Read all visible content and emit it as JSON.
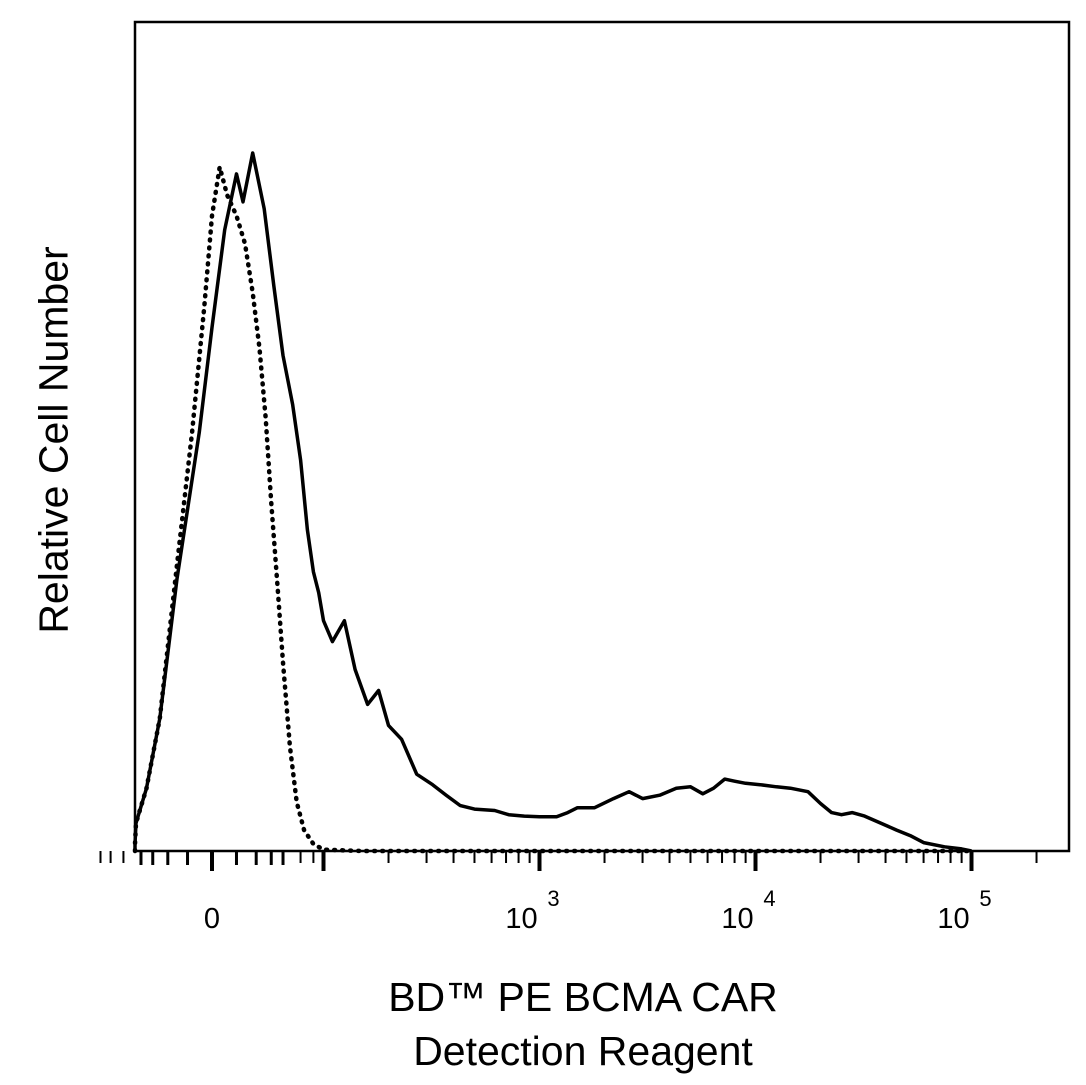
{
  "chart_data": {
    "type": "line",
    "ylabel": "Relative Cell Number",
    "xlabel_lines": [
      "BD™ PE BCMA CAR",
      "Detection Reagent"
    ],
    "x_scale": "biexponential (logicle)",
    "x_ticks": [
      {
        "value": 0,
        "base": "0",
        "exp": ""
      },
      {
        "value": 1000,
        "base": "10",
        "exp": "3"
      },
      {
        "value": 10000,
        "base": "10",
        "exp": "4"
      },
      {
        "value": 100000,
        "base": "10",
        "exp": "5"
      }
    ],
    "y_ticks": "none",
    "grid": false,
    "series": [
      {
        "style": "solid",
        "points": [
          [
            -80,
            0.0
          ],
          [
            -60,
            0.01
          ],
          [
            -45,
            0.04
          ],
          [
            -35,
            0.09
          ],
          [
            -25,
            0.19
          ],
          [
            -15,
            0.39
          ],
          [
            -5,
            0.6
          ],
          [
            0,
            0.75
          ],
          [
            5,
            0.89
          ],
          [
            10,
            0.97
          ],
          [
            13,
            0.93
          ],
          [
            18,
            1.0
          ],
          [
            25,
            0.92
          ],
          [
            32,
            0.81
          ],
          [
            40,
            0.71
          ],
          [
            50,
            0.64
          ],
          [
            60,
            0.56
          ],
          [
            70,
            0.46
          ],
          [
            80,
            0.4
          ],
          [
            90,
            0.37
          ],
          [
            100,
            0.33
          ],
          [
            110,
            0.3
          ],
          [
            125,
            0.33
          ],
          [
            140,
            0.26
          ],
          [
            160,
            0.21
          ],
          [
            180,
            0.23
          ],
          [
            200,
            0.18
          ],
          [
            230,
            0.16
          ],
          [
            270,
            0.11
          ],
          [
            320,
            0.095
          ],
          [
            370,
            0.08
          ],
          [
            430,
            0.065
          ],
          [
            500,
            0.06
          ],
          [
            620,
            0.058
          ],
          [
            720,
            0.052
          ],
          [
            850,
            0.05
          ],
          [
            1000,
            0.049
          ],
          [
            1200,
            0.049
          ],
          [
            1350,
            0.055
          ],
          [
            1500,
            0.062
          ],
          [
            1800,
            0.062
          ],
          [
            2200,
            0.075
          ],
          [
            2600,
            0.085
          ],
          [
            3000,
            0.075
          ],
          [
            3600,
            0.08
          ],
          [
            4300,
            0.09
          ],
          [
            5000,
            0.092
          ],
          [
            5700,
            0.082
          ],
          [
            6400,
            0.09
          ],
          [
            7200,
            0.103
          ],
          [
            8000,
            0.1
          ],
          [
            9000,
            0.097
          ],
          [
            10500,
            0.095
          ],
          [
            12500,
            0.092
          ],
          [
            14500,
            0.09
          ],
          [
            17500,
            0.085
          ],
          [
            20000,
            0.068
          ],
          [
            22500,
            0.055
          ],
          [
            25000,
            0.052
          ],
          [
            28000,
            0.055
          ],
          [
            32000,
            0.05
          ],
          [
            38000,
            0.04
          ],
          [
            45000,
            0.03
          ],
          [
            52000,
            0.022
          ],
          [
            60000,
            0.012
          ],
          [
            75000,
            0.006
          ],
          [
            90000,
            0.003
          ],
          [
            100000,
            0.0
          ]
        ]
      },
      {
        "style": "dotted",
        "points": [
          [
            -80,
            0.0
          ],
          [
            -60,
            0.01
          ],
          [
            -45,
            0.04
          ],
          [
            -35,
            0.09
          ],
          [
            -25,
            0.19
          ],
          [
            -15,
            0.41
          ],
          [
            -8,
            0.6
          ],
          [
            -3,
            0.78
          ],
          [
            0,
            0.91
          ],
          [
            3,
            0.98
          ],
          [
            6,
            0.94
          ],
          [
            10,
            0.91
          ],
          [
            14,
            0.87
          ],
          [
            18,
            0.8
          ],
          [
            22,
            0.72
          ],
          [
            26,
            0.62
          ],
          [
            30,
            0.5
          ],
          [
            35,
            0.38
          ],
          [
            40,
            0.27
          ],
          [
            47,
            0.15
          ],
          [
            55,
            0.07
          ],
          [
            65,
            0.03
          ],
          [
            80,
            0.01
          ],
          [
            100,
            0.002
          ],
          [
            150,
            0.0
          ],
          [
            100000,
            0.0
          ]
        ]
      }
    ]
  }
}
